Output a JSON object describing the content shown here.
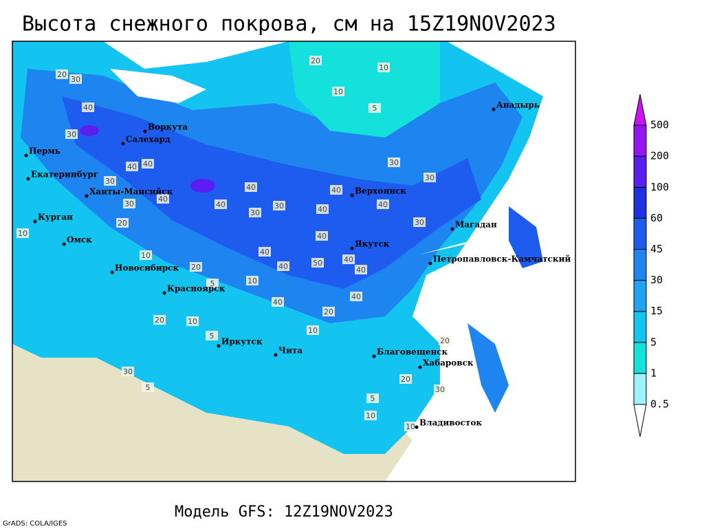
{
  "title": "Высота снежного покрова, см на 15Z19NOV2023",
  "model_label": "Модель GFS: 12Z19NOV2023",
  "credit": "GrADS: COLA/IGES",
  "legend": {
    "levels": [
      0.5,
      1,
      5,
      15,
      30,
      45,
      60,
      100,
      200,
      500
    ],
    "colors": [
      "#ffffff",
      "#9ef0fa",
      "#14e0dc",
      "#14c4f0",
      "#1ea4f0",
      "#1e84f0",
      "#1e5cf0",
      "#2032e0",
      "#5a1ef0",
      "#9614f0",
      "#c814f0"
    ]
  },
  "cities": [
    "Воркута",
    "Салехард",
    "Пермь",
    "Екатеринбург",
    "Ханты-Мансийск",
    "Курган",
    "Омск",
    "Новосибирск",
    "Красноярск",
    "Иркутск",
    "Чита",
    "Благовещенск",
    "Хабаровск",
    "Владивосток",
    "Якутск",
    "Верхоянск",
    "Магадан",
    "Петропавловск-Камчатский",
    "Анадырь"
  ],
  "contour_labels": [
    20,
    10,
    10,
    5,
    20,
    30,
    40,
    30,
    40,
    40,
    30,
    40,
    40,
    30,
    40,
    40,
    30,
    40,
    30,
    30,
    30,
    40,
    40,
    40,
    50,
    40,
    40,
    40,
    30,
    20,
    10,
    10,
    20,
    5,
    10,
    5,
    10,
    20,
    20,
    30,
    20,
    10,
    5,
    10,
    40,
    40,
    30,
    10,
    20,
    5
  ]
}
